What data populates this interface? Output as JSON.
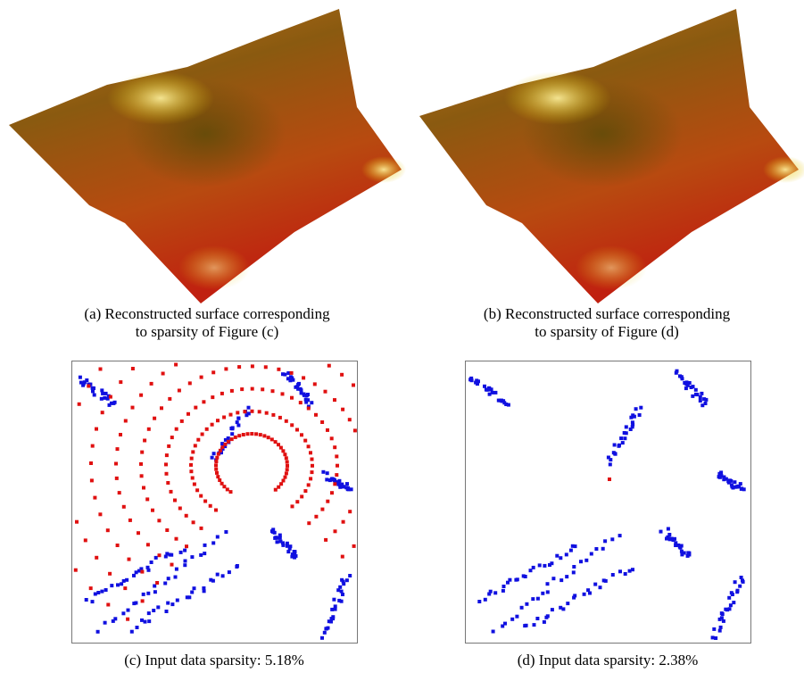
{
  "figures": [
    {
      "caption_lines": [
        "(a) Reconstructed surface corresponding",
        "to sparsity of Figure (c)"
      ]
    },
    {
      "caption_lines": [
        "(b) Reconstructed surface corresponding",
        "to sparsity of Figure (d)"
      ]
    },
    {
      "caption_lines": [
        "(c) Input data sparsity: 5.18%"
      ]
    },
    {
      "caption_lines": [
        "(d) Input data sparsity: 2.38%"
      ]
    }
  ]
}
